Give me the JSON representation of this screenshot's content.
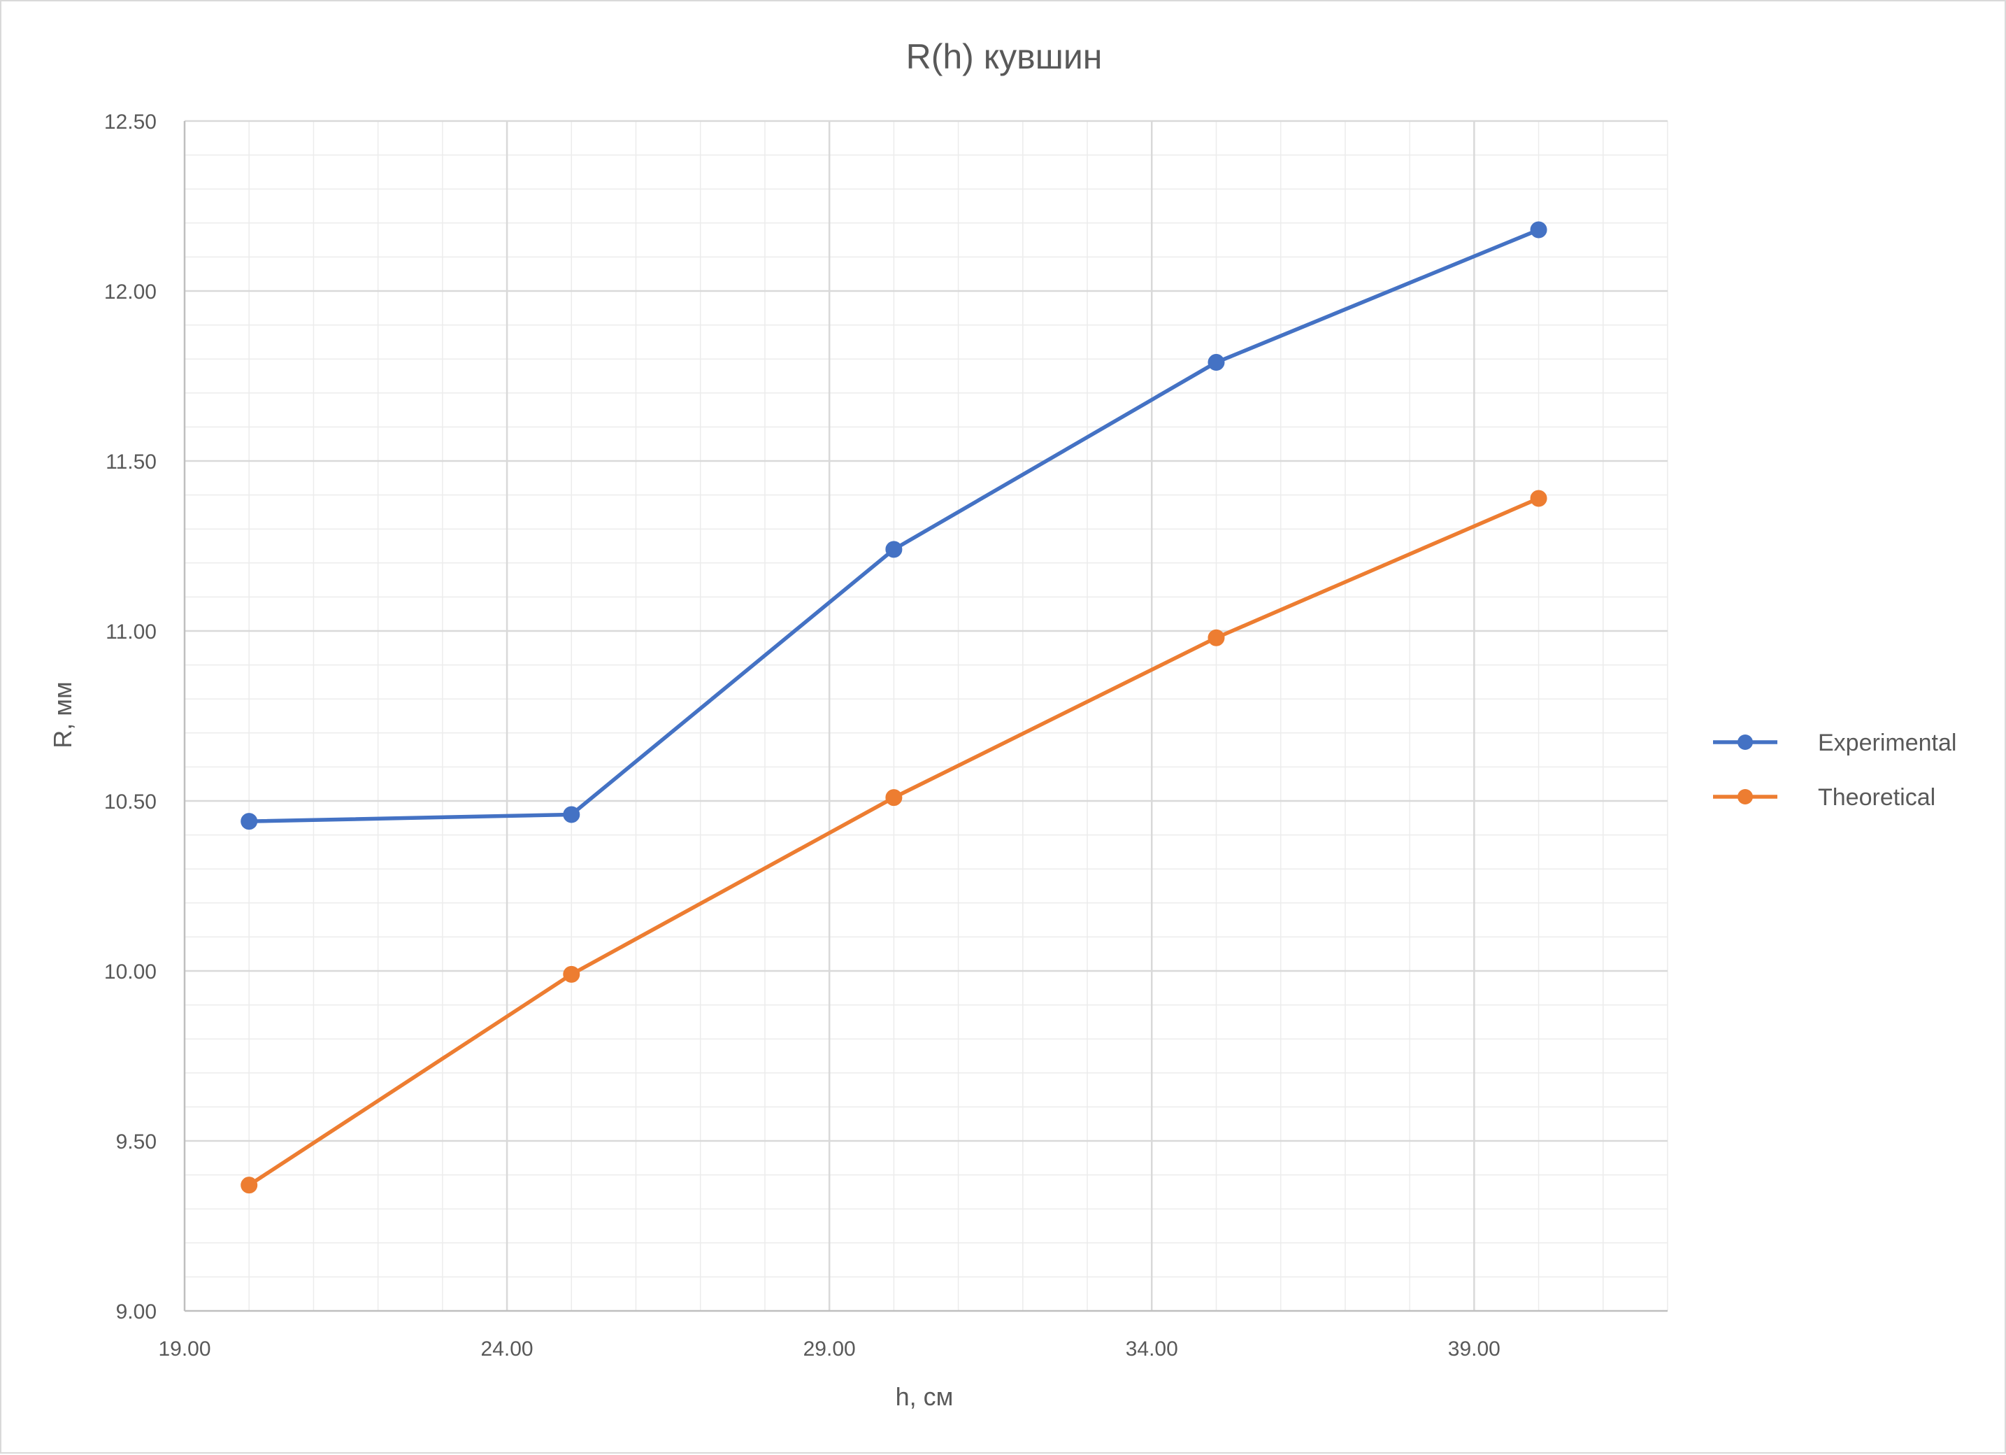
{
  "chart_data": {
    "type": "scatter",
    "title": "R(h) кувшин",
    "xlabel": "h, см",
    "ylabel": "R, мм",
    "xlim": [
      19,
      42
    ],
    "ylim": [
      9,
      12.5
    ],
    "x_major_step": 5,
    "x_minor_step": 1,
    "y_major_step": 0.5,
    "y_minor_step": 0.1,
    "x_tick_labels": [
      "19.00",
      "24.00",
      "29.00",
      "34.00",
      "39.00"
    ],
    "y_tick_labels": [
      "9.00",
      "9.50",
      "10.00",
      "10.50",
      "11.00",
      "11.50",
      "12.00",
      "12.50"
    ],
    "grid": "major and minor",
    "legend_position": "right",
    "series": [
      {
        "name": "Experimental",
        "color": "#4472C4",
        "x": [
          20,
          25,
          30,
          35,
          40
        ],
        "y": [
          10.44,
          10.46,
          11.24,
          11.79,
          12.18
        ]
      },
      {
        "name": "Theoretical",
        "color": "#ED7D31",
        "x": [
          20,
          25,
          30,
          35,
          40
        ],
        "y": [
          9.37,
          9.99,
          10.51,
          10.98,
          11.39
        ]
      }
    ]
  }
}
